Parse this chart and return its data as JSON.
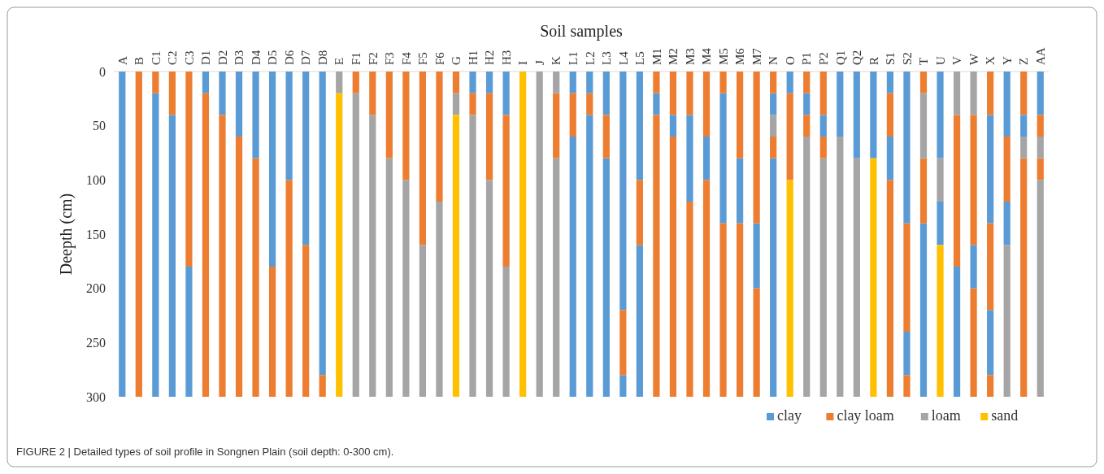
{
  "chart_data": {
    "type": "bar",
    "xlabel": "Soil samples",
    "ylabel": "Deepth (cm)",
    "categories": [
      "A",
      "B",
      "C1",
      "C2",
      "C3",
      "D1",
      "D2",
      "D3",
      "D4",
      "D5",
      "D6",
      "D7",
      "D8",
      "E",
      "F1",
      "F2",
      "F3",
      "F4",
      "F5",
      "F6",
      "G",
      "H1",
      "H2",
      "H3",
      "I",
      "J",
      "K",
      "L1",
      "L2",
      "L3",
      "L4",
      "L5",
      "M1",
      "M2",
      "M3",
      "M4",
      "M5",
      "M6",
      "M7",
      "N",
      "O",
      "P1",
      "P2",
      "Q1",
      "Q2",
      "R",
      "S1",
      "S2",
      "T",
      "U",
      "V",
      "W",
      "X",
      "Y",
      "Z",
      "AA"
    ],
    "ylim": [
      300,
      0
    ],
    "yticks": [
      0,
      50,
      100,
      150,
      200,
      250,
      300
    ],
    "grid": false,
    "legend": "bottom right",
    "series": [
      {
        "name": "clay",
        "color": "#5b9bd5",
        "x": [
          "A",
          "C1",
          "C2",
          "C3",
          "D1",
          "D2",
          "D3",
          "D4",
          "D5",
          "D6",
          "D7",
          "D8",
          "H1",
          "H2",
          "H3",
          "L1",
          "L2",
          "L3",
          "L4",
          "L5",
          "M1",
          "M2",
          "M3",
          "M4",
          "M5",
          "M6",
          "M7",
          "N",
          "O",
          "P1",
          "P2",
          "Q1",
          "Q2",
          "R",
          "S1",
          "S2",
          "T",
          "U",
          "V",
          "W",
          "X",
          "Y",
          "Z",
          "AA",
          "L1",
          "L2",
          "L3",
          "L4",
          "L5",
          "N",
          "S1",
          "S2",
          "U",
          "X",
          "Y"
        ],
        "base": [
          0,
          20,
          40,
          180,
          0,
          0,
          0,
          0,
          0,
          0,
          0,
          0,
          0,
          0,
          0,
          0,
          0,
          0,
          0,
          0,
          20,
          40,
          40,
          60,
          20,
          80,
          140,
          20,
          0,
          20,
          40,
          0,
          0,
          0,
          0,
          0,
          140,
          0,
          180,
          160,
          40,
          0,
          40,
          0,
          60,
          40,
          80,
          280,
          160,
          80,
          60,
          240,
          120,
          220,
          120
        ],
        "values": [
          300,
          280,
          260,
          120,
          20,
          40,
          60,
          80,
          180,
          100,
          160,
          280,
          20,
          20,
          40,
          20,
          20,
          40,
          220,
          100,
          20,
          20,
          80,
          40,
          120,
          60,
          60,
          20,
          20,
          20,
          20,
          60,
          80,
          80,
          20,
          140,
          160,
          80,
          120,
          40,
          100,
          60,
          20,
          40,
          240,
          260,
          220,
          20,
          140,
          220,
          40,
          40,
          40,
          60,
          40
        ]
      },
      {
        "name": "clay loam",
        "color": "#ed7d31",
        "x": [
          "B",
          "C1",
          "C2",
          "C3",
          "D1",
          "D2",
          "D3",
          "D4",
          "D5",
          "D6",
          "D7",
          "D8",
          "F1",
          "F2",
          "F3",
          "F4",
          "F5",
          "F6",
          "G",
          "H1",
          "H2",
          "H3",
          "K",
          "L1",
          "L2",
          "L3",
          "L4",
          "L5",
          "M1",
          "M2",
          "M3",
          "M4",
          "M5",
          "M6",
          "M7",
          "N",
          "O",
          "P1",
          "P2",
          "S1",
          "S2",
          "T",
          "V",
          "W",
          "X",
          "Y",
          "Z",
          "AA",
          "M1",
          "M2",
          "M3",
          "M4",
          "M5",
          "M6",
          "M7",
          "N",
          "P1",
          "P2",
          "S1",
          "S2",
          "T",
          "W",
          "X",
          "Z",
          "AA",
          "X"
        ],
        "base": [
          0,
          0,
          0,
          0,
          20,
          40,
          60,
          80,
          180,
          100,
          160,
          280,
          0,
          0,
          0,
          0,
          0,
          0,
          0,
          20,
          20,
          40,
          20,
          20,
          20,
          40,
          220,
          100,
          0,
          0,
          0,
          0,
          0,
          0,
          0,
          0,
          20,
          0,
          0,
          20,
          140,
          0,
          40,
          40,
          0,
          60,
          0,
          40,
          40,
          60,
          120,
          100,
          140,
          140,
          200,
          60,
          40,
          60,
          100,
          280,
          80,
          200,
          140,
          80,
          80,
          280
        ],
        "values": [
          300,
          20,
          40,
          180,
          280,
          260,
          240,
          220,
          120,
          200,
          140,
          20,
          20,
          40,
          80,
          100,
          160,
          120,
          20,
          20,
          80,
          140,
          60,
          40,
          20,
          40,
          60,
          60,
          20,
          40,
          40,
          60,
          20,
          80,
          140,
          20,
          80,
          20,
          40,
          40,
          100,
          20,
          140,
          120,
          40,
          60,
          40,
          20,
          260,
          240,
          180,
          200,
          160,
          160,
          100,
          20,
          20,
          20,
          200,
          20,
          60,
          100,
          80,
          220,
          20,
          20
        ]
      },
      {
        "name": "loam",
        "color": "#a5a5a5",
        "x": [
          "E",
          "F1",
          "F2",
          "F3",
          "F4",
          "F5",
          "F6",
          "G",
          "H1",
          "H2",
          "H3",
          "J",
          "K",
          "N",
          "P1",
          "P2",
          "Q1",
          "Q2",
          "T",
          "U",
          "V",
          "W",
          "Y",
          "Z",
          "AA",
          "K",
          "AA"
        ],
        "base": [
          0,
          20,
          40,
          80,
          100,
          160,
          120,
          20,
          40,
          100,
          180,
          0,
          0,
          40,
          60,
          80,
          60,
          80,
          20,
          80,
          0,
          0,
          160,
          60,
          60,
          80,
          100
        ],
        "values": [
          20,
          280,
          260,
          220,
          200,
          140,
          180,
          20,
          260,
          200,
          120,
          300,
          20,
          20,
          240,
          220,
          240,
          220,
          60,
          40,
          40,
          40,
          140,
          20,
          20,
          220,
          200
        ]
      },
      {
        "name": "sand",
        "color": "#ffc000",
        "x": [
          "E",
          "G",
          "I",
          "O",
          "R",
          "U"
        ],
        "base": [
          20,
          40,
          0,
          100,
          80,
          160
        ],
        "values": [
          280,
          260,
          300,
          200,
          220,
          140
        ]
      }
    ],
    "annotations": [
      "FIGURE 2 | Detailed types of soil profile in Songnen Plain (soil depth: 0-300 cm)."
    ]
  }
}
